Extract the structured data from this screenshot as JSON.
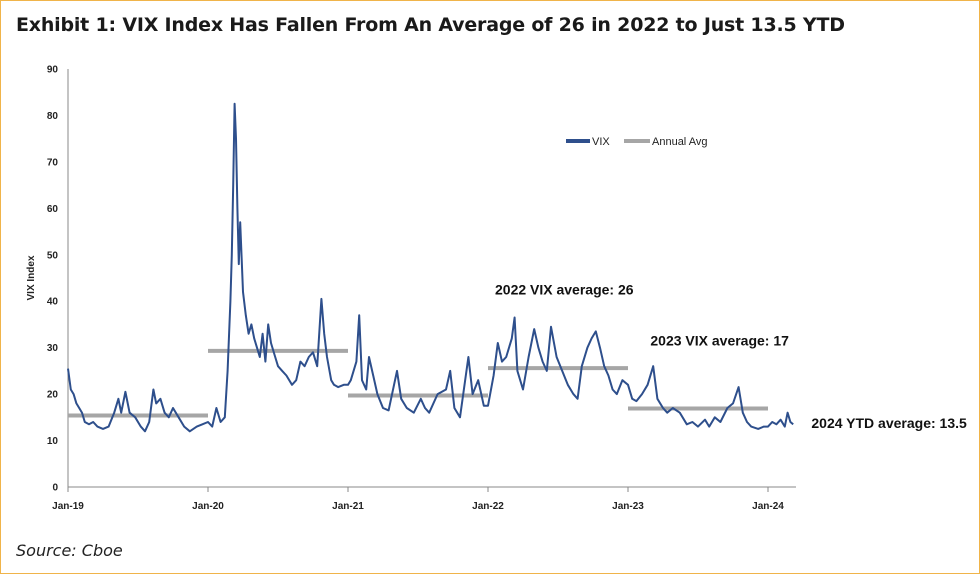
{
  "title": "Exhibit 1: VIX Index Has Fallen From An Average of 26 in 2022 to Just 13.5 YTD",
  "source": "Source: Cboe",
  "colors": {
    "vix": "#2e4f8c",
    "avg": "#a6a6a6",
    "border": "#f0b44a"
  },
  "chart_data": {
    "type": "line",
    "title": "Exhibit 1: VIX Index Has Fallen From An Average of 26 in 2022 to Just 13.5 YTD",
    "xlabel": "",
    "ylabel": "VIX Index",
    "ylim": [
      0,
      90
    ],
    "yticks": [
      0,
      10,
      20,
      30,
      40,
      50,
      60,
      70,
      80,
      90
    ],
    "xlim": [
      2019.0,
      2024.2
    ],
    "xticks": [
      {
        "x": 2019,
        "label": "Jan-19"
      },
      {
        "x": 2020,
        "label": "Jan-20"
      },
      {
        "x": 2021,
        "label": "Jan-21"
      },
      {
        "x": 2022,
        "label": "Jan-22"
      },
      {
        "x": 2023,
        "label": "Jan-23"
      },
      {
        "x": 2024,
        "label": "Jan-24"
      }
    ],
    "legend": {
      "placement": "top-right",
      "entries": [
        "VIX",
        "Annual Avg"
      ]
    },
    "series": [
      {
        "name": "VIX",
        "points": [
          [
            2019.0,
            25.5
          ],
          [
            2019.02,
            21
          ],
          [
            2019.04,
            20
          ],
          [
            2019.06,
            18
          ],
          [
            2019.08,
            17
          ],
          [
            2019.1,
            16
          ],
          [
            2019.12,
            14
          ],
          [
            2019.15,
            13.5
          ],
          [
            2019.18,
            14
          ],
          [
            2019.21,
            13
          ],
          [
            2019.25,
            12.5
          ],
          [
            2019.29,
            13
          ],
          [
            2019.33,
            16
          ],
          [
            2019.36,
            19
          ],
          [
            2019.38,
            16
          ],
          [
            2019.41,
            20.5
          ],
          [
            2019.44,
            16
          ],
          [
            2019.48,
            15
          ],
          [
            2019.52,
            13
          ],
          [
            2019.55,
            12
          ],
          [
            2019.58,
            14
          ],
          [
            2019.61,
            21
          ],
          [
            2019.63,
            18
          ],
          [
            2019.66,
            19
          ],
          [
            2019.69,
            16
          ],
          [
            2019.72,
            15
          ],
          [
            2019.75,
            17
          ],
          [
            2019.79,
            15
          ],
          [
            2019.83,
            13
          ],
          [
            2019.87,
            12
          ],
          [
            2019.92,
            13
          ],
          [
            2019.96,
            13.5
          ],
          [
            2020.0,
            14
          ],
          [
            2020.03,
            13
          ],
          [
            2020.06,
            17
          ],
          [
            2020.09,
            14
          ],
          [
            2020.12,
            15
          ],
          [
            2020.14,
            25
          ],
          [
            2020.16,
            40
          ],
          [
            2020.17,
            50
          ],
          [
            2020.18,
            65
          ],
          [
            2020.19,
            82.5
          ],
          [
            2020.2,
            75
          ],
          [
            2020.21,
            60
          ],
          [
            2020.22,
            48
          ],
          [
            2020.23,
            57
          ],
          [
            2020.25,
            42
          ],
          [
            2020.27,
            37
          ],
          [
            2020.29,
            33
          ],
          [
            2020.31,
            35
          ],
          [
            2020.33,
            32
          ],
          [
            2020.35,
            30
          ],
          [
            2020.37,
            28
          ],
          [
            2020.39,
            33
          ],
          [
            2020.41,
            27
          ],
          [
            2020.43,
            35
          ],
          [
            2020.45,
            31
          ],
          [
            2020.48,
            28
          ],
          [
            2020.5,
            26
          ],
          [
            2020.53,
            25
          ],
          [
            2020.56,
            24
          ],
          [
            2020.6,
            22
          ],
          [
            2020.63,
            23
          ],
          [
            2020.66,
            27
          ],
          [
            2020.69,
            26
          ],
          [
            2020.72,
            28
          ],
          [
            2020.75,
            29
          ],
          [
            2020.78,
            26
          ],
          [
            2020.81,
            40.5
          ],
          [
            2020.83,
            33
          ],
          [
            2020.85,
            28
          ],
          [
            2020.88,
            23
          ],
          [
            2020.9,
            22
          ],
          [
            2020.93,
            21.5
          ],
          [
            2020.97,
            22
          ],
          [
            2021.0,
            22
          ],
          [
            2021.02,
            23
          ],
          [
            2021.06,
            27
          ],
          [
            2021.08,
            37
          ],
          [
            2021.1,
            23
          ],
          [
            2021.13,
            21
          ],
          [
            2021.15,
            28
          ],
          [
            2021.18,
            24
          ],
          [
            2021.21,
            20
          ],
          [
            2021.25,
            17
          ],
          [
            2021.29,
            16.5
          ],
          [
            2021.35,
            25
          ],
          [
            2021.38,
            19
          ],
          [
            2021.42,
            17
          ],
          [
            2021.47,
            16
          ],
          [
            2021.52,
            19
          ],
          [
            2021.55,
            17
          ],
          [
            2021.58,
            16
          ],
          [
            2021.64,
            20
          ],
          [
            2021.7,
            21
          ],
          [
            2021.73,
            25
          ],
          [
            2021.76,
            17
          ],
          [
            2021.8,
            15
          ],
          [
            2021.86,
            28
          ],
          [
            2021.89,
            20
          ],
          [
            2021.93,
            23
          ],
          [
            2021.97,
            17.5
          ],
          [
            2022.0,
            17.5
          ],
          [
            2022.04,
            24
          ],
          [
            2022.07,
            31
          ],
          [
            2022.1,
            27
          ],
          [
            2022.13,
            28
          ],
          [
            2022.17,
            32
          ],
          [
            2022.19,
            36.5
          ],
          [
            2022.21,
            25
          ],
          [
            2022.25,
            21
          ],
          [
            2022.29,
            28
          ],
          [
            2022.33,
            34
          ],
          [
            2022.36,
            30
          ],
          [
            2022.39,
            27
          ],
          [
            2022.42,
            25
          ],
          [
            2022.45,
            34.5
          ],
          [
            2022.49,
            28
          ],
          [
            2022.53,
            25
          ],
          [
            2022.57,
            22
          ],
          [
            2022.61,
            20
          ],
          [
            2022.64,
            19
          ],
          [
            2022.67,
            26
          ],
          [
            2022.71,
            30
          ],
          [
            2022.74,
            32
          ],
          [
            2022.77,
            33.5
          ],
          [
            2022.8,
            30
          ],
          [
            2022.83,
            26
          ],
          [
            2022.86,
            24
          ],
          [
            2022.89,
            21
          ],
          [
            2022.92,
            20
          ],
          [
            2022.96,
            23
          ],
          [
            2023.0,
            22
          ],
          [
            2023.03,
            19
          ],
          [
            2023.06,
            18.5
          ],
          [
            2023.1,
            20
          ],
          [
            2023.14,
            22
          ],
          [
            2023.18,
            26
          ],
          [
            2023.21,
            19
          ],
          [
            2023.25,
            17
          ],
          [
            2023.28,
            16
          ],
          [
            2023.32,
            17
          ],
          [
            2023.37,
            16
          ],
          [
            2023.42,
            13.5
          ],
          [
            2023.46,
            14
          ],
          [
            2023.5,
            13
          ],
          [
            2023.55,
            14.5
          ],
          [
            2023.58,
            13
          ],
          [
            2023.62,
            15
          ],
          [
            2023.66,
            14
          ],
          [
            2023.71,
            17
          ],
          [
            2023.75,
            18
          ],
          [
            2023.79,
            21.5
          ],
          [
            2023.82,
            16
          ],
          [
            2023.85,
            14
          ],
          [
            2023.88,
            13
          ],
          [
            2023.93,
            12.5
          ],
          [
            2023.97,
            13
          ],
          [
            2024.0,
            13
          ],
          [
            2024.03,
            14
          ],
          [
            2024.06,
            13.5
          ],
          [
            2024.09,
            14.5
          ],
          [
            2024.12,
            13
          ],
          [
            2024.14,
            16
          ],
          [
            2024.16,
            14
          ],
          [
            2024.18,
            13.5
          ]
        ]
      },
      {
        "name": "Annual Avg",
        "segments": [
          {
            "x0": 2019.0,
            "x1": 2020.0,
            "y": 15.4
          },
          {
            "x0": 2020.0,
            "x1": 2021.0,
            "y": 29.3
          },
          {
            "x0": 2021.0,
            "x1": 2022.0,
            "y": 19.7
          },
          {
            "x0": 2022.0,
            "x1": 2023.0,
            "y": 25.6
          },
          {
            "x0": 2023.0,
            "x1": 2024.0,
            "y": 16.9
          }
        ]
      }
    ],
    "annotations": [
      {
        "text": "2022 VIX average: 26",
        "x": 2022.05,
        "y": 41.5
      },
      {
        "text": "2023 VIX average: 17",
        "x": 2023.16,
        "y": 30.5
      },
      {
        "text": "2024 YTD average: 13.5",
        "x": 2024.31,
        "y": 12.7
      }
    ]
  }
}
